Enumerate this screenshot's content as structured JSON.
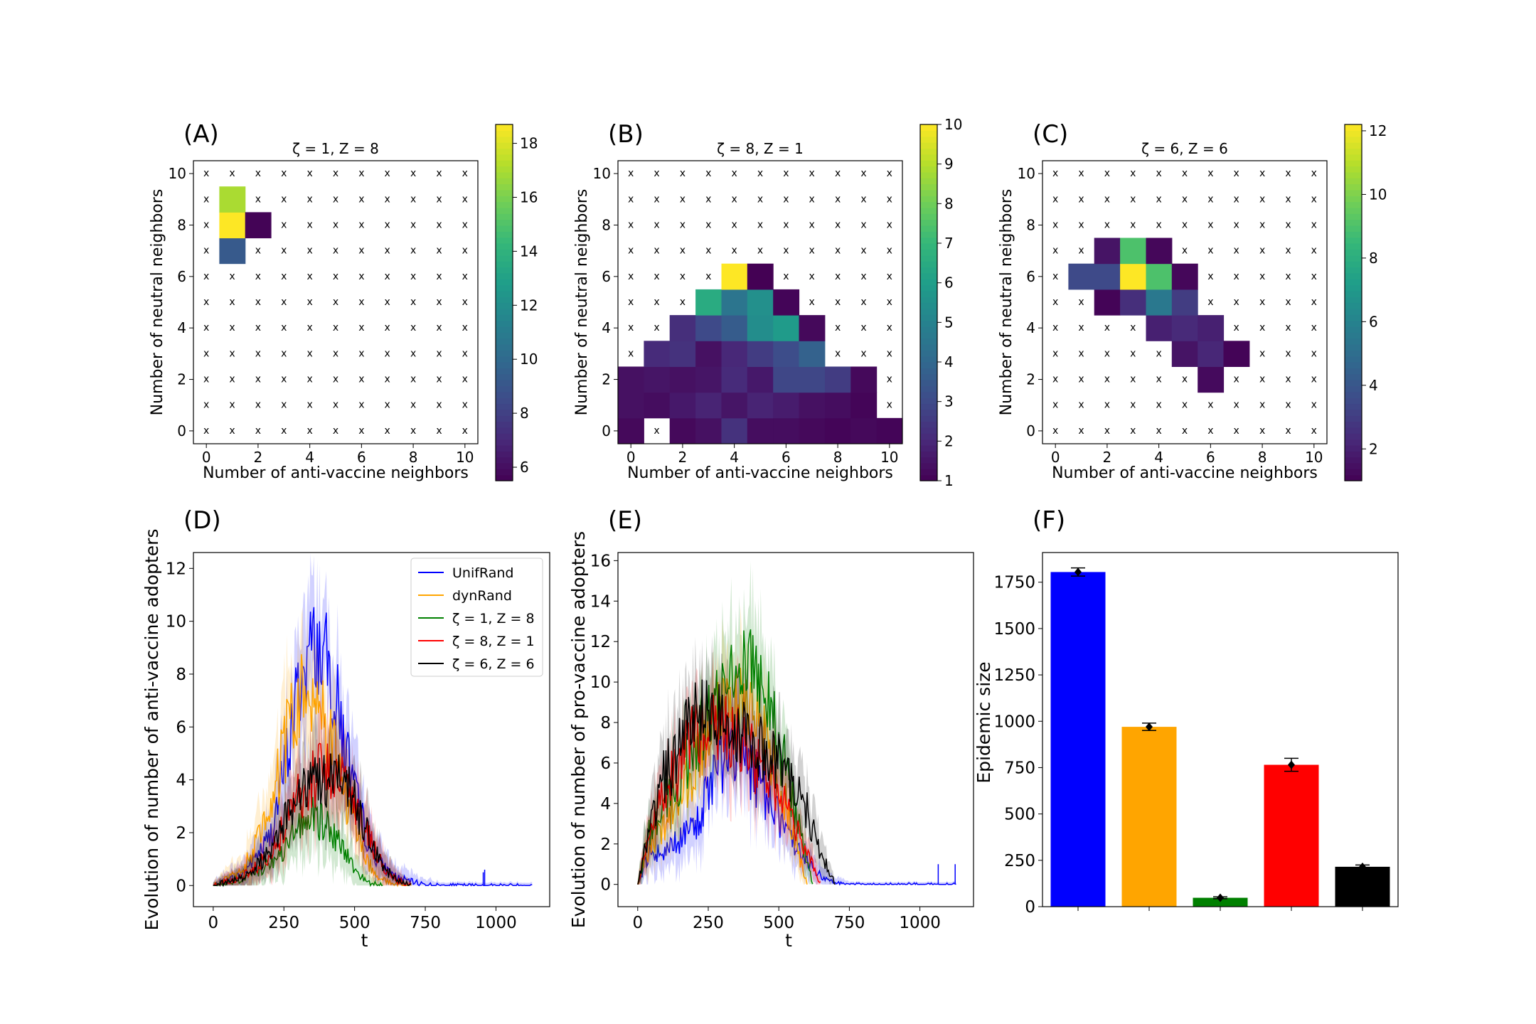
{
  "chart_data": [
    {
      "type": "heatmap",
      "panel": "(A)",
      "title": "ζ = 1, Z = 8",
      "xlabel": "Number of anti-vaccine neighbors",
      "ylabel": "Number of neutral neighbors",
      "x_ticks": [
        "0",
        "2",
        "4",
        "6",
        "8",
        "10"
      ],
      "y_ticks": [
        "0",
        "2",
        "4",
        "6",
        "8",
        "10"
      ],
      "colorbar": {
        "min": 5.5,
        "max": 18.7,
        "ticks": [
          "6",
          "8",
          "10",
          "12",
          "14",
          "16",
          "18"
        ],
        "tick_values": [
          6,
          8,
          10,
          12,
          14,
          16,
          18
        ]
      },
      "missing_marker": "x",
      "cells": [
        [
          1,
          9,
          17
        ],
        [
          1,
          8,
          18.7
        ],
        [
          2,
          8,
          5.6
        ],
        [
          1,
          7,
          9.2
        ]
      ]
    },
    {
      "type": "heatmap",
      "panel": "(B)",
      "title": "ζ = 8, Z = 1",
      "xlabel": "Number of anti-vaccine neighbors",
      "ylabel": "Number of neutral neighbors",
      "x_ticks": [
        "0",
        "2",
        "4",
        "6",
        "8",
        "10"
      ],
      "y_ticks": [
        "0",
        "2",
        "4",
        "6",
        "8",
        "10"
      ],
      "colorbar": {
        "min": 1,
        "max": 10,
        "ticks": [
          "1",
          "2",
          "3",
          "4",
          "5",
          "6",
          "7",
          "8",
          "9",
          "10"
        ],
        "tick_values": [
          1,
          2,
          3,
          4,
          5,
          6,
          7,
          8,
          9,
          10
        ]
      },
      "missing_marker": "x",
      "cells": [
        [
          4,
          6,
          10
        ],
        [
          5,
          6,
          1
        ],
        [
          3,
          5,
          6.5
        ],
        [
          4,
          5,
          4.5
        ],
        [
          5,
          5,
          5.5
        ],
        [
          6,
          5,
          1.1
        ],
        [
          2,
          4,
          2.2
        ],
        [
          3,
          4,
          3
        ],
        [
          4,
          4,
          3.6
        ],
        [
          5,
          4,
          5.4
        ],
        [
          6,
          4,
          5.9
        ],
        [
          7,
          4,
          1.2
        ],
        [
          1,
          3,
          2.1
        ],
        [
          2,
          3,
          2.3
        ],
        [
          3,
          3,
          1.4
        ],
        [
          4,
          3,
          2
        ],
        [
          5,
          3,
          2.6
        ],
        [
          6,
          3,
          3.1
        ],
        [
          7,
          3,
          3.8
        ],
        [
          0,
          2,
          1.4
        ],
        [
          1,
          2,
          1.5
        ],
        [
          2,
          2,
          1.4
        ],
        [
          3,
          2,
          1.5
        ],
        [
          4,
          2,
          2.1
        ],
        [
          5,
          2,
          1.6
        ],
        [
          6,
          2,
          2.9
        ],
        [
          7,
          2,
          2.9
        ],
        [
          8,
          2,
          2.6
        ],
        [
          9,
          2,
          1.2
        ],
        [
          0,
          1,
          1.4
        ],
        [
          1,
          1,
          1.3
        ],
        [
          2,
          1,
          1.6
        ],
        [
          3,
          1,
          1.9
        ],
        [
          4,
          1,
          1.5
        ],
        [
          5,
          1,
          1.9
        ],
        [
          6,
          1,
          1.7
        ],
        [
          7,
          1,
          1.4
        ],
        [
          8,
          1,
          1.3
        ],
        [
          9,
          1,
          1.1
        ],
        [
          0,
          0,
          1.2
        ],
        [
          2,
          0,
          1.2
        ],
        [
          3,
          0,
          1.4
        ],
        [
          4,
          0,
          2.3
        ],
        [
          5,
          0,
          1.3
        ],
        [
          6,
          0,
          1.3
        ],
        [
          7,
          0,
          1.2
        ],
        [
          8,
          0,
          1.1
        ],
        [
          9,
          0,
          1.2
        ],
        [
          10,
          0,
          1.1
        ]
      ]
    },
    {
      "type": "heatmap",
      "panel": "(C)",
      "title": "ζ = 6, Z = 6",
      "xlabel": "Number of anti-vaccine neighbors",
      "ylabel": "Number of neutral neighbors",
      "x_ticks": [
        "0",
        "2",
        "4",
        "6",
        "8",
        "10"
      ],
      "y_ticks": [
        "0",
        "2",
        "4",
        "6",
        "8",
        "10"
      ],
      "colorbar": {
        "min": 1,
        "max": 12.2,
        "ticks": [
          "2",
          "4",
          "6",
          "8",
          "10",
          "12"
        ],
        "tick_values": [
          2,
          4,
          6,
          8,
          10,
          12
        ]
      },
      "missing_marker": "x",
      "cells": [
        [
          2,
          7,
          1.6
        ],
        [
          3,
          7,
          9
        ],
        [
          4,
          7,
          1.2
        ],
        [
          1,
          6,
          3.5
        ],
        [
          2,
          6,
          3.5
        ],
        [
          3,
          6,
          12.2
        ],
        [
          4,
          6,
          9
        ],
        [
          5,
          6,
          1.2
        ],
        [
          2,
          5,
          1.1
        ],
        [
          3,
          5,
          2.5
        ],
        [
          4,
          5,
          5.5
        ],
        [
          5,
          5,
          3
        ],
        [
          4,
          4,
          2
        ],
        [
          5,
          4,
          2.3
        ],
        [
          6,
          4,
          2
        ],
        [
          5,
          3,
          1.6
        ],
        [
          6,
          3,
          2.2
        ],
        [
          7,
          3,
          1.1
        ],
        [
          6,
          2,
          1.3
        ]
      ]
    },
    {
      "type": "line",
      "panel": "(D)",
      "xlabel": "t",
      "ylabel": "Evolution of number of anti-vaccine adopters",
      "xlim": [
        -70,
        1190
      ],
      "ylim": [
        -0.8,
        12.6
      ],
      "x_ticks": [
        "0",
        "250",
        "500",
        "750",
        "1000"
      ],
      "y_ticks": [
        "0",
        "2",
        "4",
        "6",
        "8",
        "10",
        "12"
      ],
      "legend_position": "upper-right",
      "series": [
        {
          "name": "UnifRand",
          "color": "#0000ff",
          "t": [
            0,
            100,
            200,
            250,
            300,
            350,
            400,
            450,
            500,
            550,
            600,
            650,
            700,
            750,
            800,
            900,
            1000,
            1130
          ],
          "values": [
            0,
            0.4,
            1.8,
            4.2,
            7.3,
            9.2,
            8.6,
            6.2,
            3.5,
            1.6,
            0.7,
            0.3,
            0.15,
            0.05,
            0,
            0,
            0,
            0
          ]
        },
        {
          "name": "dynRand",
          "color": "#ffa500",
          "t": [
            0,
            100,
            200,
            250,
            300,
            350,
            400,
            450,
            500,
            550,
            600,
            650,
            700
          ],
          "values": [
            0,
            0.5,
            2.6,
            5.1,
            7.1,
            7.3,
            6.1,
            4.1,
            2.2,
            0.8,
            0.2,
            0.05,
            0
          ]
        },
        {
          "name": "ζ = 1, Z = 8",
          "color": "#008000",
          "t": [
            0,
            100,
            200,
            250,
            300,
            350,
            400,
            450,
            500,
            550,
            600
          ],
          "values": [
            0,
            0.2,
            0.8,
            1.4,
            2.2,
            2.6,
            2.3,
            1.6,
            0.6,
            0.1,
            0
          ]
        },
        {
          "name": "ζ = 8, Z = 1",
          "color": "#ff0000",
          "t": [
            0,
            100,
            200,
            250,
            300,
            350,
            400,
            450,
            500,
            550,
            600,
            650,
            700
          ],
          "values": [
            0,
            0.3,
            1.1,
            2.2,
            3.3,
            4.1,
            4.6,
            4.2,
            3.1,
            1.8,
            0.7,
            0.2,
            0
          ]
        },
        {
          "name": "ζ = 6, Z = 6",
          "color": "#000000",
          "t": [
            0,
            100,
            200,
            250,
            300,
            350,
            400,
            450,
            500,
            550,
            600,
            650,
            700
          ],
          "values": [
            0,
            0.3,
            1.2,
            2.3,
            3.3,
            3.9,
            4.2,
            4,
            3.1,
            1.8,
            0.7,
            0.2,
            0
          ]
        }
      ]
    },
    {
      "type": "line",
      "panel": "(E)",
      "xlabel": "t",
      "ylabel": "Evolution of number of pro-vaccine adopters",
      "xlim": [
        -70,
        1190
      ],
      "ylim": [
        -1.1,
        16.4
      ],
      "x_ticks": [
        "0",
        "250",
        "500",
        "750",
        "1000"
      ],
      "y_ticks": [
        "0",
        "2",
        "4",
        "6",
        "8",
        "10",
        "12",
        "14",
        "16"
      ],
      "series": [
        {
          "name": "UnifRand",
          "color": "#0000ff",
          "t": [
            0,
            40,
            100,
            200,
            250,
            300,
            350,
            400,
            450,
            500,
            550,
            600,
            650,
            700,
            750,
            800,
            900,
            1000,
            1130
          ],
          "values": [
            0,
            1.5,
            1.6,
            2.8,
            4.5,
            6.2,
            6.6,
            5.7,
            4.5,
            3.3,
            2.2,
            1.1,
            0.4,
            0.1,
            0,
            0,
            0,
            0,
            0
          ]
        },
        {
          "name": "dynRand",
          "color": "#ffa500",
          "t": [
            0,
            40,
            100,
            200,
            250,
            300,
            350,
            400,
            450,
            500,
            550,
            600
          ],
          "values": [
            0,
            1.8,
            3.2,
            5.5,
            7.5,
            8.8,
            9.3,
            9.1,
            7.4,
            5.3,
            2.5,
            0
          ]
        },
        {
          "name": "ζ = 1, Z = 8",
          "color": "#008000",
          "t": [
            0,
            40,
            100,
            200,
            250,
            300,
            350,
            400,
            450,
            500,
            550,
            600,
            620
          ],
          "values": [
            0,
            2.5,
            4.2,
            6.8,
            8.4,
            9.8,
            10.8,
            10.9,
            9.6,
            7.1,
            4,
            1.2,
            0
          ]
        },
        {
          "name": "ζ = 8, Z = 1",
          "color": "#ff0000",
          "t": [
            0,
            40,
            100,
            200,
            250,
            300,
            350,
            400,
            450,
            500,
            550,
            600,
            650
          ],
          "values": [
            0,
            2.5,
            4.5,
            7.5,
            7.9,
            7.8,
            7.3,
            6.5,
            5.6,
            4.4,
            3,
            1.5,
            0
          ]
        },
        {
          "name": "ζ = 6, Z = 6",
          "color": "#000000",
          "t": [
            0,
            40,
            100,
            200,
            250,
            300,
            350,
            400,
            450,
            500,
            550,
            600,
            650,
            700
          ],
          "values": [
            0,
            2.8,
            5.5,
            8.3,
            8.6,
            8.4,
            7.8,
            7.3,
            6.8,
            6.2,
            5.1,
            3.6,
            1.5,
            0
          ]
        }
      ]
    },
    {
      "type": "bar",
      "panel": "(F)",
      "ylabel": "Epidemic size",
      "ylim": [
        0,
        1910
      ],
      "y_ticks": [
        "0",
        "250",
        "500",
        "750",
        "1000",
        "1250",
        "1500",
        "1750"
      ],
      "categories": [
        "UnifRand",
        "dynRand",
        "ζ = 1, Z = 8",
        "ζ = 8, Z = 1",
        "ζ = 6, Z = 6"
      ],
      "values": [
        1805,
        970,
        48,
        765,
        215
      ],
      "errors": [
        22,
        20,
        5,
        35,
        10
      ],
      "colors": [
        "#0000ff",
        "#ffa500",
        "#008000",
        "#ff0000",
        "#000000"
      ]
    }
  ]
}
